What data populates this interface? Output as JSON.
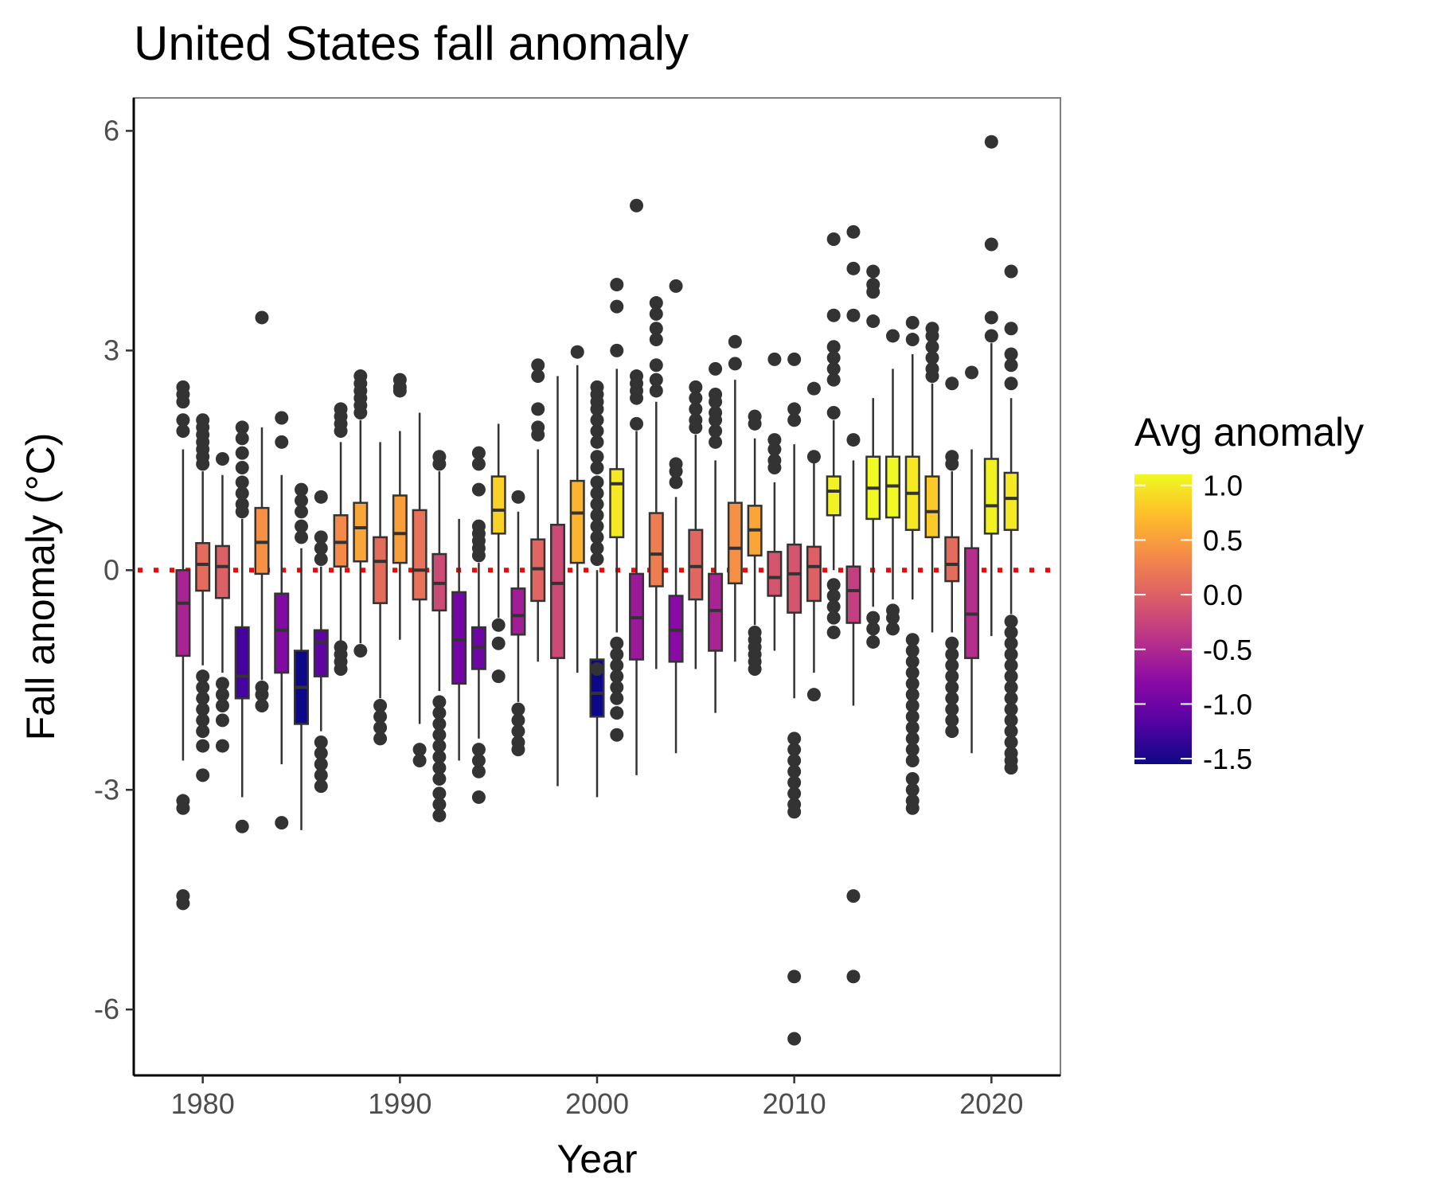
{
  "chart_data": {
    "type": "boxplot",
    "title": "United States fall anomaly",
    "xlabel": "Year",
    "ylabel": "Fall anomaly (°C)",
    "xlim": [
      1976.5,
      2023.5
    ],
    "ylim": [
      -6.9,
      6.45
    ],
    "x_ticks": [
      1980,
      1990,
      2000,
      2010,
      2020
    ],
    "x_tick_labels": [
      "1980",
      "1990",
      "2000",
      "2010",
      "2020"
    ],
    "y_ticks": [
      6,
      3,
      0,
      -3,
      -6
    ],
    "y_tick_labels": [
      "6",
      "3",
      "0",
      "-3",
      "-6"
    ],
    "reference_line": {
      "y": 0,
      "color": "#ff0000",
      "style": "dotted"
    },
    "grid": false,
    "legend": {
      "title": "Avg anomaly",
      "position": "right",
      "type": "colorbar",
      "range": [
        -1.55,
        1.1
      ],
      "ticks": [
        1.0,
        0.5,
        0.0,
        -0.5,
        -1.0,
        -1.5
      ],
      "tick_labels": [
        "1.0",
        "0.5",
        "0.0",
        "-0.5",
        "-1.0",
        "-1.5"
      ]
    },
    "palette": {
      "stops": [
        "#0d0887",
        "#5402a3",
        "#8b0aa5",
        "#b93289",
        "#db5c68",
        "#f48849",
        "#febd2a",
        "#f0f921"
      ],
      "median_color": "#333333",
      "outline_color": "#333333",
      "outlier_color": "#333333"
    },
    "boxes": [
      {
        "year": 1979,
        "mean": -0.55,
        "q1": -1.17,
        "median": -0.45,
        "q3": 0.0,
        "whisker_low": -2.6,
        "whisker_high": 1.65,
        "outliers": [
          2.5,
          2.4,
          2.3,
          2.05,
          1.9,
          -3.15,
          -3.25,
          -4.45,
          -4.55
        ]
      },
      {
        "year": 1980,
        "mean": 0.1,
        "q1": -0.28,
        "median": 0.08,
        "q3": 0.37,
        "whisker_low": -1.3,
        "whisker_high": 1.35,
        "outliers": [
          2.05,
          1.95,
          1.85,
          1.75,
          1.65,
          1.55,
          1.45,
          -1.45,
          -1.6,
          -1.75,
          -1.9,
          -2.05,
          -2.2,
          -2.4,
          -2.8
        ]
      },
      {
        "year": 1981,
        "mean": 0.0,
        "q1": -0.38,
        "median": 0.05,
        "q3": 0.33,
        "whisker_low": -1.4,
        "whisker_high": 1.3,
        "outliers": [
          1.52,
          -1.55,
          -1.7,
          -1.85,
          -2.05,
          -2.4
        ]
      },
      {
        "year": 1982,
        "mean": -1.25,
        "q1": -1.75,
        "median": -1.45,
        "q3": -0.78,
        "whisker_low": -3.1,
        "whisker_high": 0.7,
        "outliers": [
          1.95,
          1.8,
          1.6,
          1.4,
          1.2,
          1.05,
          0.9,
          0.8,
          -3.5
        ]
      },
      {
        "year": 1983,
        "mean": 0.4,
        "q1": -0.05,
        "median": 0.38,
        "q3": 0.85,
        "whisker_low": -1.5,
        "whisker_high": 1.95,
        "outliers": [
          3.45,
          -1.6,
          -1.7,
          -1.85
        ]
      },
      {
        "year": 1984,
        "mean": -0.85,
        "q1": -1.4,
        "median": -0.82,
        "q3": -0.32,
        "whisker_low": -2.65,
        "whisker_high": 1.3,
        "outliers": [
          2.08,
          1.75,
          -3.45
        ]
      },
      {
        "year": 1985,
        "mean": -1.55,
        "q1": -2.1,
        "median": -1.6,
        "q3": -1.1,
        "whisker_low": -3.55,
        "whisker_high": 0.3,
        "outliers": [
          1.1,
          0.95,
          0.8,
          0.6,
          0.45
        ]
      },
      {
        "year": 1986,
        "mean": -1.1,
        "q1": -1.45,
        "median": -0.98,
        "q3": -0.82,
        "whisker_low": -2.2,
        "whisker_high": 0.05,
        "outliers": [
          1.0,
          0.45,
          0.3,
          0.15,
          -2.35,
          -2.5,
          -2.65,
          -2.8,
          -2.95
        ]
      },
      {
        "year": 1987,
        "mean": 0.35,
        "q1": 0.05,
        "median": 0.38,
        "q3": 0.75,
        "whisker_low": -1.0,
        "whisker_high": 1.75,
        "outliers": [
          2.2,
          2.1,
          2.0,
          1.9,
          -1.05,
          -1.15,
          -1.25,
          -1.35
        ]
      },
      {
        "year": 1988,
        "mean": 0.55,
        "q1": 0.12,
        "median": 0.58,
        "q3": 0.92,
        "whisker_low": -1.0,
        "whisker_high": 2.05,
        "outliers": [
          2.65,
          2.55,
          2.45,
          2.35,
          2.25,
          2.15,
          -1.1
        ]
      },
      {
        "year": 1989,
        "mean": 0.1,
        "q1": -0.45,
        "median": 0.12,
        "q3": 0.45,
        "whisker_low": -1.75,
        "whisker_high": 1.75,
        "outliers": [
          -1.85,
          -2.0,
          -2.15,
          -2.3
        ]
      },
      {
        "year": 1990,
        "mean": 0.5,
        "q1": 0.1,
        "median": 0.5,
        "q3": 1.02,
        "whisker_low": -0.95,
        "whisker_high": 1.9,
        "outliers": [
          2.6,
          2.5,
          2.45
        ]
      },
      {
        "year": 1991,
        "mean": 0.15,
        "q1": -0.4,
        "median": 0.0,
        "q3": 0.82,
        "whisker_low": -2.1,
        "whisker_high": 2.15,
        "outliers": [
          -2.45,
          -2.6
        ]
      },
      {
        "year": 1992,
        "mean": -0.2,
        "q1": -0.55,
        "median": -0.18,
        "q3": 0.22,
        "whisker_low": -1.65,
        "whisker_high": 1.35,
        "outliers": [
          1.55,
          1.45,
          -1.8,
          -1.95,
          -2.1,
          -2.25,
          -2.4,
          -2.55,
          -2.7,
          -2.85,
          -3.05,
          -3.2,
          -3.35
        ]
      },
      {
        "year": 1993,
        "mean": -0.95,
        "q1": -1.55,
        "median": -0.95,
        "q3": -0.3,
        "whisker_low": -2.6,
        "whisker_high": 0.7,
        "outliers": []
      },
      {
        "year": 1994,
        "mean": -1.0,
        "q1": -1.35,
        "median": -1.05,
        "q3": -0.78,
        "whisker_low": -2.3,
        "whisker_high": 0.1,
        "outliers": [
          1.6,
          1.45,
          1.1,
          0.6,
          0.5,
          0.4,
          0.3,
          0.2,
          -2.45,
          -2.6,
          -2.75,
          -3.1
        ]
      },
      {
        "year": 1995,
        "mean": 0.85,
        "q1": 0.5,
        "median": 0.82,
        "q3": 1.28,
        "whisker_low": -0.65,
        "whisker_high": 2.0,
        "outliers": [
          -0.75,
          -1.0,
          -1.45
        ]
      },
      {
        "year": 1996,
        "mean": -0.6,
        "q1": -0.88,
        "median": -0.62,
        "q3": -0.25,
        "whisker_low": -1.8,
        "whisker_high": 0.8,
        "outliers": [
          1.0,
          -1.9,
          -2.05,
          -2.2,
          -2.35,
          -2.45
        ]
      },
      {
        "year": 1997,
        "mean": 0.05,
        "q1": -0.42,
        "median": 0.02,
        "q3": 0.42,
        "whisker_low": -1.25,
        "whisker_high": 1.65,
        "outliers": [
          2.8,
          2.65,
          2.2,
          1.95,
          1.85
        ]
      },
      {
        "year": 1998,
        "mean": -0.2,
        "q1": -1.2,
        "median": -0.18,
        "q3": 0.62,
        "whisker_low": -2.95,
        "whisker_high": 2.65,
        "outliers": []
      },
      {
        "year": 1999,
        "mean": 0.65,
        "q1": 0.1,
        "median": 0.78,
        "q3": 1.22,
        "whisker_low": -1.4,
        "whisker_high": 2.8,
        "outliers": [
          2.98
        ]
      },
      {
        "year": 2000,
        "mean": -1.6,
        "q1": -2.0,
        "median": -1.68,
        "q3": -1.22,
        "whisker_low": -3.1,
        "whisker_high": 0.0,
        "outliers": [
          2.5,
          2.4,
          2.3,
          2.2,
          2.05,
          1.9,
          1.75,
          1.55,
          1.4,
          1.2,
          1.05,
          0.9,
          0.75,
          0.6,
          0.45,
          0.3,
          0.15,
          -1.35
        ]
      },
      {
        "year": 2001,
        "mean": 1.0,
        "q1": 0.45,
        "median": 1.18,
        "q3": 1.38,
        "whisker_low": -0.85,
        "whisker_high": 2.75,
        "outliers": [
          3.9,
          3.6,
          3.0,
          -1.0,
          -1.15,
          -1.3,
          -1.45,
          -1.6,
          -1.75,
          -1.95,
          -2.25
        ]
      },
      {
        "year": 2002,
        "mean": -0.65,
        "q1": -1.22,
        "median": -0.65,
        "q3": -0.05,
        "whisker_low": -2.8,
        "whisker_high": 1.9,
        "outliers": [
          4.98,
          2.65,
          2.55,
          2.45,
          2.35,
          2.0
        ]
      },
      {
        "year": 2003,
        "mean": 0.25,
        "q1": -0.22,
        "median": 0.22,
        "q3": 0.78,
        "whisker_low": -1.35,
        "whisker_high": 2.3,
        "outliers": [
          3.65,
          3.5,
          3.3,
          3.15,
          2.8,
          2.6,
          2.45
        ]
      },
      {
        "year": 2004,
        "mean": -0.8,
        "q1": -1.25,
        "median": -0.82,
        "q3": -0.35,
        "whisker_low": -2.5,
        "whisker_high": 1.0,
        "outliers": [
          3.88,
          1.45,
          1.35,
          1.2
        ]
      },
      {
        "year": 2005,
        "mean": 0.05,
        "q1": -0.4,
        "median": 0.05,
        "q3": 0.55,
        "whisker_low": -1.35,
        "whisker_high": 1.85,
        "outliers": [
          2.5,
          2.35,
          2.2,
          2.05,
          1.95
        ]
      },
      {
        "year": 2006,
        "mean": -0.55,
        "q1": -1.1,
        "median": -0.55,
        "q3": -0.05,
        "whisker_low": -1.95,
        "whisker_high": 1.5,
        "outliers": [
          2.75,
          2.4,
          2.3,
          2.15,
          2.05,
          1.9,
          1.75
        ]
      },
      {
        "year": 2007,
        "mean": 0.4,
        "q1": -0.18,
        "median": 0.3,
        "q3": 0.92,
        "whisker_low": -1.25,
        "whisker_high": 2.6,
        "outliers": [
          3.12,
          2.82
        ]
      },
      {
        "year": 2008,
        "mean": 0.55,
        "q1": 0.2,
        "median": 0.55,
        "q3": 0.88,
        "whisker_low": -0.75,
        "whisker_high": 1.8,
        "outliers": [
          2.1,
          2.0,
          -0.85,
          -0.95,
          -1.05,
          -1.15,
          -1.25,
          -1.35
        ]
      },
      {
        "year": 2009,
        "mean": -0.1,
        "q1": -0.35,
        "median": -0.1,
        "q3": 0.25,
        "whisker_low": -1.1,
        "whisker_high": 1.2,
        "outliers": [
          2.88,
          1.78,
          1.65,
          1.5,
          1.4
        ]
      },
      {
        "year": 2010,
        "mean": -0.1,
        "q1": -0.58,
        "median": -0.05,
        "q3": 0.35,
        "whisker_low": -1.75,
        "whisker_high": 1.72,
        "outliers": [
          2.88,
          2.2,
          2.05,
          -2.3,
          -2.45,
          -2.6,
          -2.75,
          -2.9,
          -3.05,
          -3.2,
          -3.3,
          -5.55,
          -6.4
        ]
      },
      {
        "year": 2011,
        "mean": 0.0,
        "q1": -0.42,
        "median": 0.05,
        "q3": 0.32,
        "whisker_low": -1.4,
        "whisker_high": 1.5,
        "outliers": [
          2.48,
          1.55,
          -1.7
        ]
      },
      {
        "year": 2012,
        "mean": 1.05,
        "q1": 0.75,
        "median": 1.08,
        "q3": 1.28,
        "whisker_low": 0.0,
        "whisker_high": 2.05,
        "outliers": [
          4.52,
          3.48,
          3.05,
          2.9,
          2.75,
          2.6,
          2.15,
          -0.2,
          -0.35,
          -0.5,
          -0.65,
          -0.85
        ]
      },
      {
        "year": 2013,
        "mean": -0.3,
        "q1": -0.72,
        "median": -0.28,
        "q3": 0.05,
        "whisker_low": -1.85,
        "whisker_high": 1.5,
        "outliers": [
          4.62,
          4.12,
          3.48,
          1.78,
          -4.45,
          -5.55
        ]
      },
      {
        "year": 2014,
        "mean": 1.1,
        "q1": 0.7,
        "median": 1.12,
        "q3": 1.55,
        "whisker_low": -0.5,
        "whisker_high": 2.35,
        "outliers": [
          4.08,
          3.9,
          3.8,
          3.4,
          -0.65,
          -0.8,
          -0.98
        ]
      },
      {
        "year": 2015,
        "mean": 1.15,
        "q1": 0.72,
        "median": 1.15,
        "q3": 1.55,
        "whisker_low": -0.4,
        "whisker_high": 2.75,
        "outliers": [
          3.2,
          -0.55,
          -0.65,
          -0.8
        ]
      },
      {
        "year": 2016,
        "mean": 1.0,
        "q1": 0.55,
        "median": 1.05,
        "q3": 1.55,
        "whisker_low": -0.4,
        "whisker_high": 2.95,
        "outliers": [
          3.38,
          3.15,
          -0.95,
          -1.1,
          -1.25,
          -1.4,
          -1.55,
          -1.7,
          -1.85,
          -2.0,
          -2.15,
          -2.3,
          -2.45,
          -2.6,
          -2.85,
          -3.0,
          -3.15,
          -3.25
        ]
      },
      {
        "year": 2017,
        "mean": 0.8,
        "q1": 0.45,
        "median": 0.8,
        "q3": 1.28,
        "whisker_low": -0.85,
        "whisker_high": 2.55,
        "outliers": [
          3.3,
          3.2,
          3.05,
          2.9,
          2.75,
          2.65
        ]
      },
      {
        "year": 2018,
        "mean": 0.1,
        "q1": -0.15,
        "median": 0.08,
        "q3": 0.45,
        "whisker_low": -0.85,
        "whisker_high": 1.35,
        "outliers": [
          2.55,
          1.55,
          1.45,
          -1.0,
          -1.15,
          -1.3,
          -1.45,
          -1.6,
          -1.75,
          -1.9,
          -2.05,
          -2.2
        ]
      },
      {
        "year": 2019,
        "mean": -0.45,
        "q1": -1.2,
        "median": -0.6,
        "q3": 0.3,
        "whisker_low": -2.5,
        "whisker_high": 1.65,
        "outliers": [
          2.7
        ]
      },
      {
        "year": 2020,
        "mean": 1.05,
        "q1": 0.5,
        "median": 0.88,
        "q3": 1.52,
        "whisker_low": -0.9,
        "whisker_high": 3.1,
        "outliers": [
          5.85,
          4.45,
          3.45,
          3.2
        ]
      },
      {
        "year": 2021,
        "mean": 1.0,
        "q1": 0.55,
        "median": 0.98,
        "q3": 1.33,
        "whisker_low": -0.6,
        "whisker_high": 2.35,
        "outliers": [
          4.08,
          3.3,
          2.95,
          2.8,
          2.55,
          -0.7,
          -0.85,
          -1.0,
          -1.15,
          -1.3,
          -1.45,
          -1.6,
          -1.75,
          -1.9,
          -2.05,
          -2.2,
          -2.35,
          -2.5,
          -2.6,
          -2.7
        ]
      }
    ]
  }
}
